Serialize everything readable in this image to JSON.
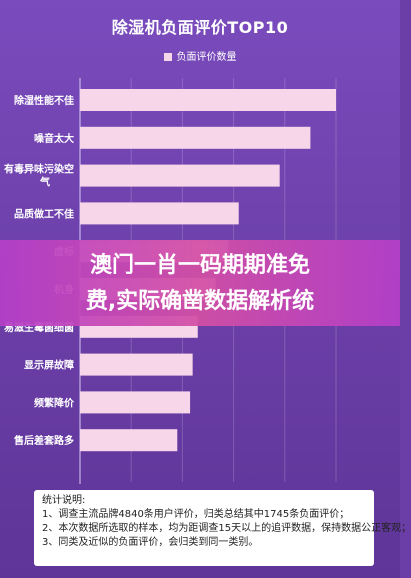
{
  "chart_data": {
    "type": "bar",
    "orientation": "horizontal",
    "title": "除湿机负面评价TOP10",
    "legend": [
      "负面评价数量"
    ],
    "legend_position": "top",
    "categories": [
      "除湿性能不佳",
      "噪音太大",
      "有毒异味污染空气",
      "品质做工不佳",
      "虚标",
      "机身",
      "易滋生霉菌细菌",
      "显示屏故障",
      "频繁降价",
      "售后差套路多"
    ],
    "series": [
      {
        "name": "负面评价数量",
        "values": [
          100,
          90,
          78,
          62,
          58,
          53,
          46,
          44,
          43,
          38
        ]
      }
    ],
    "grid": true,
    "colors": {
      "bar": "#f7d6ea"
    }
  },
  "overlay": {
    "line1": "澳门一肖一码期期准免",
    "line2": "费,实际确凿数据解析统"
  },
  "notes": {
    "title": "统计说明:",
    "items": [
      "1、调查主流品牌4840条用户评价，归类总结其中1745条负面评价；",
      "2、本次数据所选取的样本，均为距调查15天以上的追评数据，保持数据公正客观；",
      "3、同类及近似的负面评价，会归类到同一类别。"
    ]
  }
}
